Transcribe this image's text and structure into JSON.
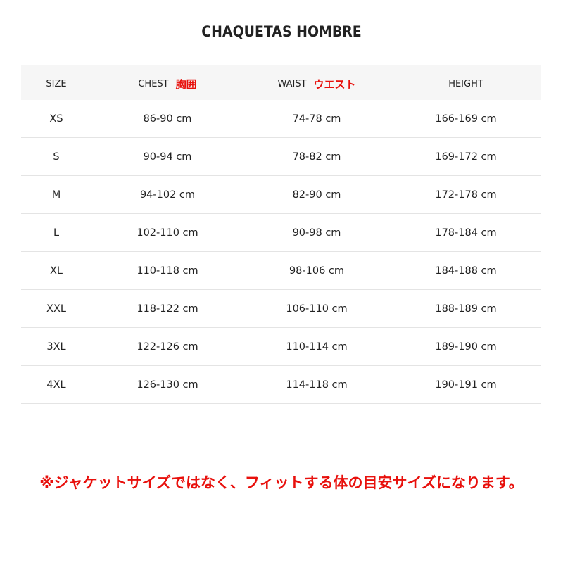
{
  "title": "CHAQUETAS HOMBRE",
  "headers": {
    "size": "SIZE",
    "chest": "CHEST",
    "chest_jp": "胸囲",
    "waist": "WAIST",
    "waist_jp": "ウエスト",
    "height": "HEIGHT"
  },
  "rows": [
    {
      "size": "XS",
      "chest": "86-90 cm",
      "waist": "74-78 cm",
      "height": "166-169 cm"
    },
    {
      "size": "S",
      "chest": "90-94 cm",
      "waist": "78-82 cm",
      "height": "169-172 cm"
    },
    {
      "size": "M",
      "chest": "94-102 cm",
      "waist": "82-90 cm",
      "height": "172-178 cm"
    },
    {
      "size": "L",
      "chest": "102-110 cm",
      "waist": "90-98 cm",
      "height": "178-184 cm"
    },
    {
      "size": "XL",
      "chest": "110-118 cm",
      "waist": "98-106 cm",
      "height": "184-188 cm"
    },
    {
      "size": "XXL",
      "chest": "118-122 cm",
      "waist": "106-110 cm",
      "height": "188-189 cm"
    },
    {
      "size": "3XL",
      "chest": "122-126 cm",
      "waist": "110-114 cm",
      "height": "189-190 cm"
    },
    {
      "size": "4XL",
      "chest": "126-130 cm",
      "waist": "114-118 cm",
      "height": "190-191 cm"
    }
  ],
  "note": "※ジャケットサイズではなく、フィットする体の目安サイズになります。",
  "colors": {
    "accent_red": "#e8100c",
    "header_bg": "#f6f6f6"
  }
}
